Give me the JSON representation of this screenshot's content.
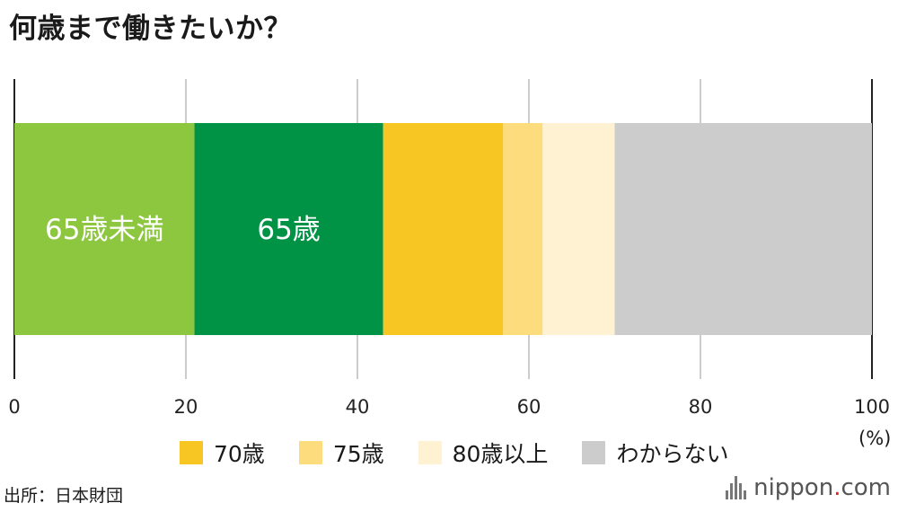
{
  "title": "何歳まで働きたいか？",
  "chart_data": {
    "type": "bar",
    "orientation": "horizontal-stacked",
    "xlim": [
      0,
      100
    ],
    "xticks": [
      "0",
      "20",
      "40",
      "60",
      "80",
      "100"
    ],
    "unit_label": "(%)",
    "grid": true,
    "segments": [
      {
        "name": "65歳未満",
        "value": 21,
        "color": "#8dc63f",
        "label": "65歳未満"
      },
      {
        "name": "65歳",
        "value": 22,
        "color": "#009245",
        "label": "65歳"
      },
      {
        "name": "70歳",
        "value": 14,
        "color": "#f7c623",
        "label": ""
      },
      {
        "name": "75歳",
        "value": 4.6,
        "color": "#fddc7d",
        "label": ""
      },
      {
        "name": "80歳以上",
        "value": 8.4,
        "color": "#fef2d2",
        "label": ""
      },
      {
        "name": "わからない",
        "value": 30,
        "color": "#cccccc",
        "label": ""
      }
    ]
  },
  "legend": [
    {
      "label": "70歳",
      "color": "#f7c623"
    },
    {
      "label": "75歳",
      "color": "#fddc7d"
    },
    {
      "label": "80歳以上",
      "color": "#fef2d2"
    },
    {
      "label": "わからない",
      "color": "#cccccc"
    }
  ],
  "source": "出所：日本財団",
  "brand": {
    "name": "nippon",
    "dot": ".",
    "suffix": "com"
  }
}
